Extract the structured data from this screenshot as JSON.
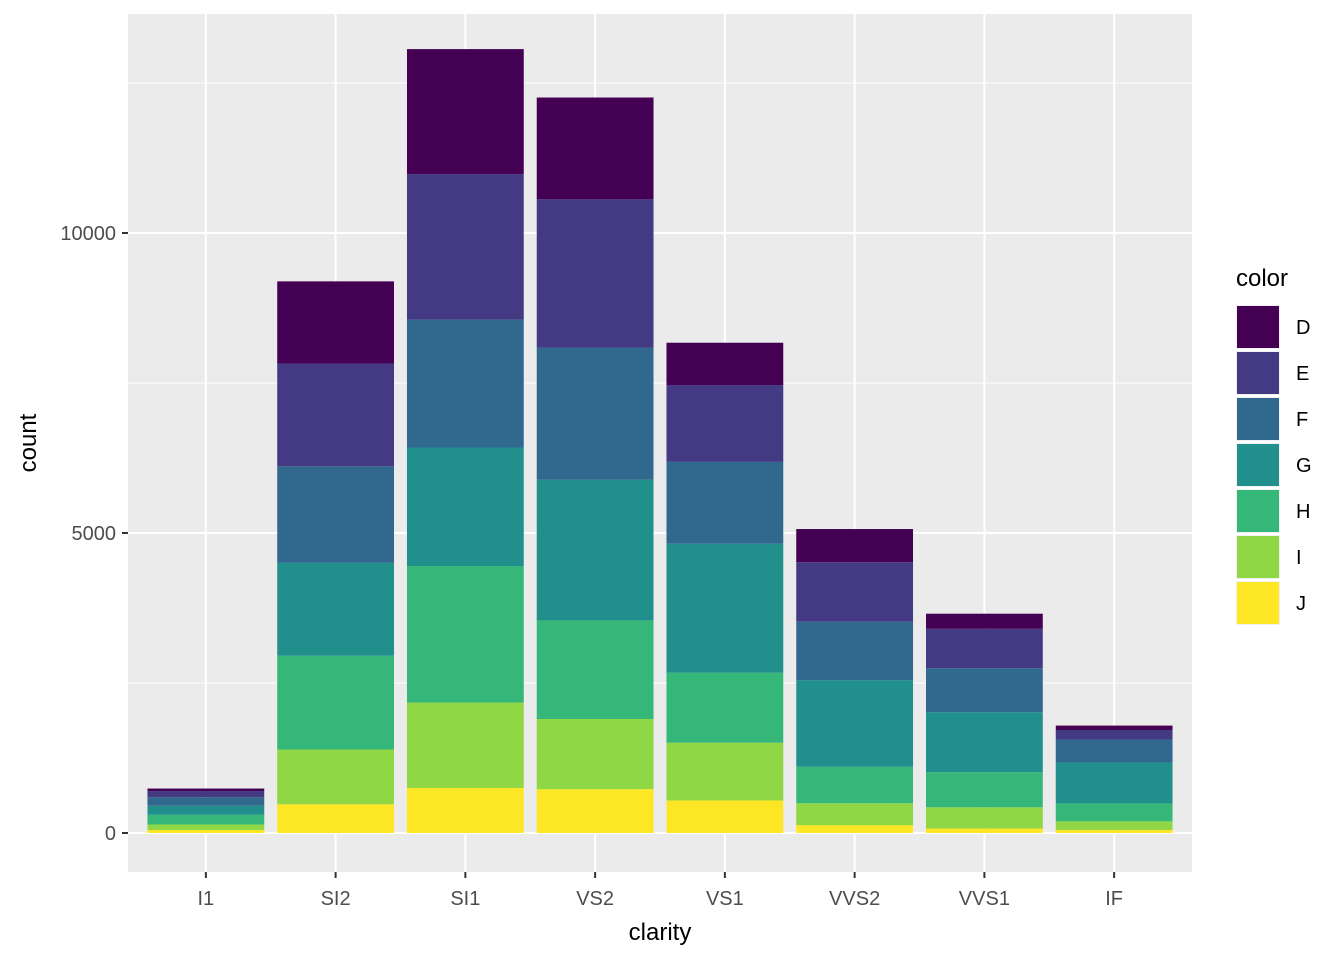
{
  "chart_data": {
    "type": "bar",
    "stacked": true,
    "categories": [
      "I1",
      "SI2",
      "SI1",
      "VS2",
      "VS1",
      "VVS2",
      "VVS1",
      "IF"
    ],
    "series": [
      {
        "name": "D",
        "color": "#440154",
        "values": [
          42,
          1370,
          2083,
          1697,
          705,
          553,
          252,
          73
        ]
      },
      {
        "name": "E",
        "color": "#443A83",
        "values": [
          102,
          1713,
          2426,
          2470,
          1281,
          991,
          656,
          158
        ]
      },
      {
        "name": "F",
        "color": "#31688E",
        "values": [
          143,
          1609,
          2131,
          2201,
          1364,
          975,
          734,
          385
        ]
      },
      {
        "name": "G",
        "color": "#21908C",
        "values": [
          150,
          1548,
          1976,
          2347,
          2148,
          1443,
          999,
          681
        ]
      },
      {
        "name": "H",
        "color": "#35B779",
        "values": [
          162,
          1563,
          2275,
          1643,
          1169,
          608,
          585,
          299
        ]
      },
      {
        "name": "I",
        "color": "#8FD744",
        "values": [
          92,
          912,
          1424,
          1169,
          962,
          365,
          355,
          143
        ]
      },
      {
        "name": "J",
        "color": "#FDE725",
        "values": [
          50,
          479,
          750,
          731,
          542,
          131,
          74,
          51
        ]
      }
    ],
    "xlabel": "clarity",
    "ylabel": "count",
    "yticks": [
      0,
      5000,
      10000
    ],
    "ylim": [
      -650,
      13650
    ],
    "legend": {
      "title": "color",
      "position": "right"
    },
    "grid": true,
    "panel_background": "#EBEBEB"
  }
}
